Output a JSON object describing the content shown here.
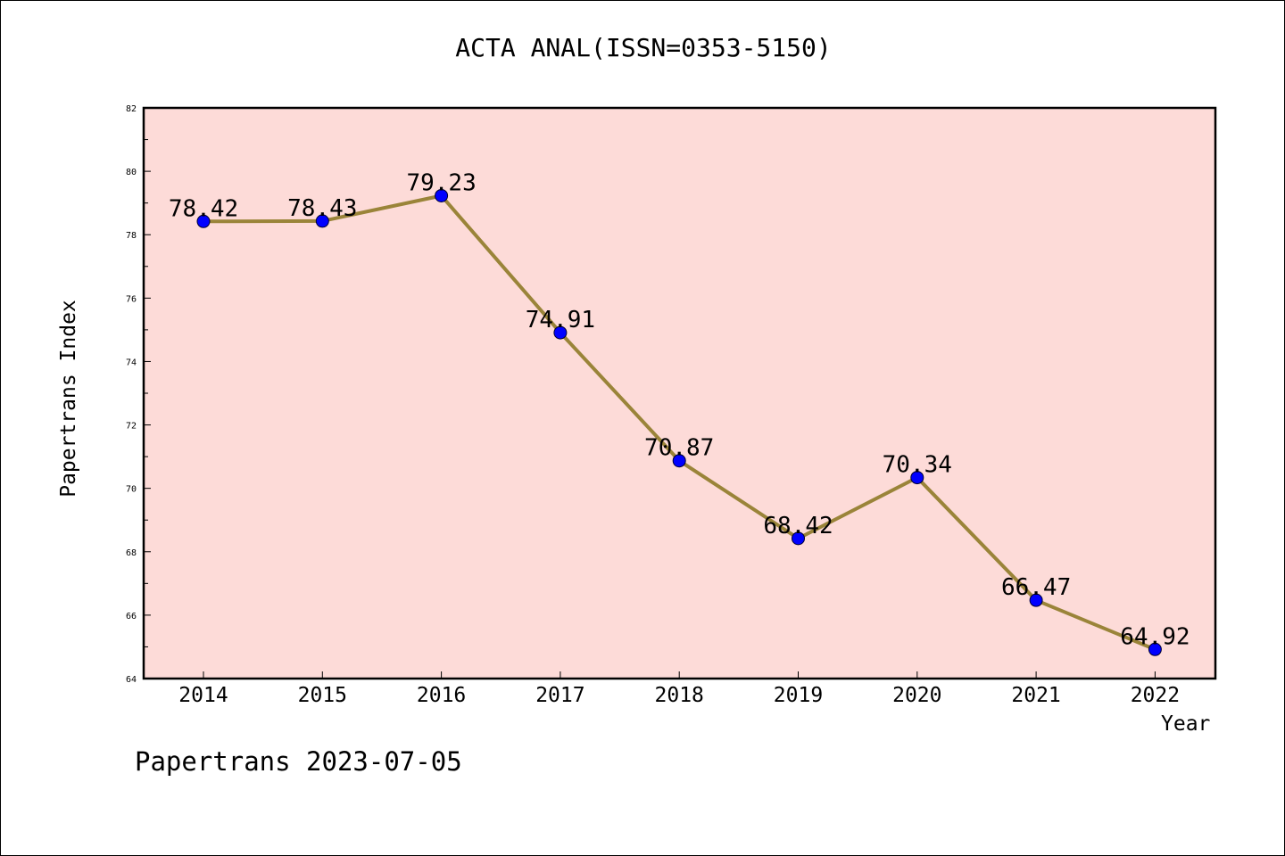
{
  "chart_data": {
    "type": "line",
    "title": "ACTA ANAL(ISSN=0353-5150)",
    "xlabel": "Year",
    "ylabel": "Papertrans Index",
    "categories": [
      "2014",
      "2015",
      "2016",
      "2017",
      "2018",
      "2019",
      "2020",
      "2021",
      "2022"
    ],
    "series": [
      {
        "values": [
          78.42,
          78.43,
          79.23,
          74.91,
          70.87,
          68.42,
          70.34,
          66.47,
          64.92
        ],
        "labels": [
          "78.42",
          "78.43",
          "79.23",
          "74.91",
          "70.87",
          "68.42",
          "70.34",
          "66.47",
          "64.92"
        ]
      }
    ],
    "ylim": [
      64,
      82
    ],
    "yticks": [
      "64",
      "66",
      "68",
      "70",
      "72",
      "74",
      "76",
      "78",
      "80",
      "82"
    ],
    "grid": false,
    "legend": "none",
    "colors": {
      "plot_background": "#fddbd8",
      "line": "#9a8439",
      "marker": "#0000ff",
      "axes": "#000000"
    }
  },
  "footer": "Papertrans 2023-07-05"
}
